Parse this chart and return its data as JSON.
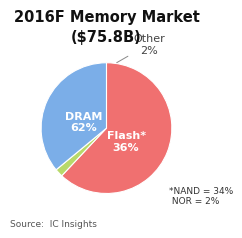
{
  "title": "2016F Memory Market\n($75.8B)",
  "slices": [
    62,
    2,
    36
  ],
  "colors": [
    "#F07070",
    "#B8D96A",
    "#7BAEE8"
  ],
  "startangle": 90,
  "note": "*NAND = 34%\n NOR = 2%",
  "source": "Source:  IC Insights",
  "title_fontsize": 10.5,
  "label_fontsize": 8.0,
  "note_fontsize": 6.5,
  "source_fontsize": 6.5,
  "bg_color": "#FFFFFF",
  "dram_label": "DRAM\n62%",
  "flash_label": "Flash*\n36%",
  "other_label": "Other\n2%"
}
